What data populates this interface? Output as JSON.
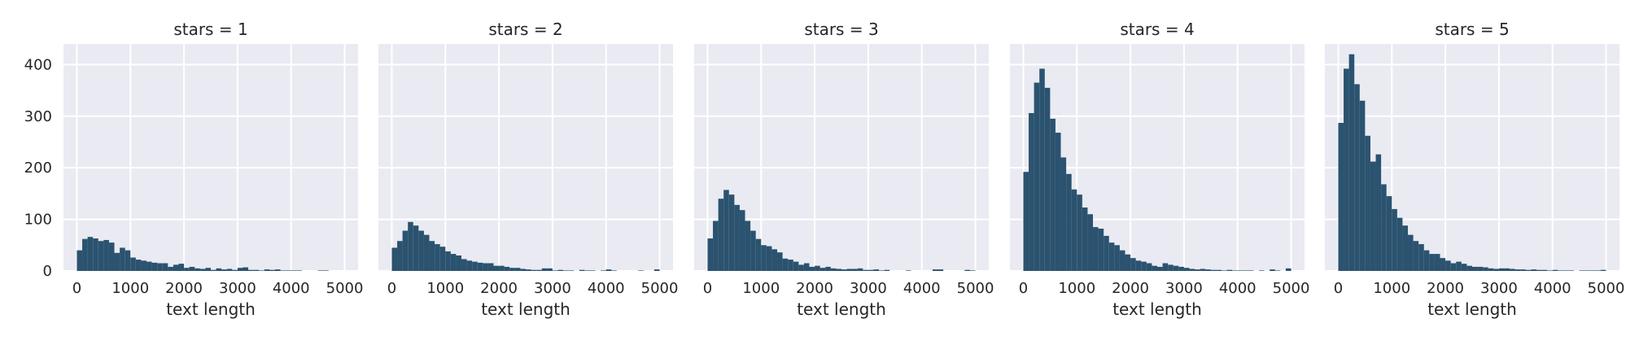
{
  "chart_data": [
    {
      "type": "bar",
      "title": "stars = 1",
      "xlabel": "text length",
      "ylabel": "",
      "bin_width": 100,
      "bin_start": 0,
      "xlim": [
        -250,
        5250
      ],
      "ylim": [
        0,
        440
      ],
      "xticks": [
        0,
        1000,
        2000,
        3000,
        4000,
        5000
      ],
      "yticks": [
        0,
        100,
        200,
        300,
        400
      ],
      "grid": true,
      "values": [
        40,
        62,
        66,
        63,
        58,
        60,
        55,
        35,
        45,
        40,
        26,
        22,
        20,
        18,
        16,
        15,
        15,
        8,
        12,
        14,
        6,
        8,
        5,
        4,
        6,
        2,
        5,
        3,
        4,
        2,
        6,
        7,
        2,
        2,
        1,
        3,
        2,
        3,
        1,
        1,
        1,
        1,
        0,
        0,
        0,
        1,
        1,
        0,
        0,
        0
      ]
    },
    {
      "type": "bar",
      "title": "stars = 2",
      "xlabel": "text length",
      "ylabel": "",
      "bin_width": 100,
      "bin_start": 0,
      "xlim": [
        -250,
        5250
      ],
      "ylim": [
        0,
        440
      ],
      "xticks": [
        0,
        1000,
        2000,
        3000,
        4000,
        5000
      ],
      "yticks": [
        0,
        100,
        200,
        300,
        400
      ],
      "grid": true,
      "values": [
        45,
        58,
        78,
        95,
        88,
        78,
        70,
        58,
        52,
        47,
        38,
        33,
        30,
        23,
        20,
        18,
        16,
        15,
        15,
        10,
        10,
        8,
        6,
        6,
        4,
        3,
        2,
        2,
        5,
        5,
        1,
        2,
        1,
        1,
        0,
        2,
        1,
        1,
        0,
        1,
        3,
        1,
        0,
        0,
        0,
        0,
        1,
        0,
        0,
        3
      ]
    },
    {
      "type": "bar",
      "title": "stars = 3",
      "xlabel": "text length",
      "ylabel": "",
      "bin_width": 100,
      "bin_start": 0,
      "xlim": [
        -250,
        5250
      ],
      "ylim": [
        0,
        440
      ],
      "xticks": [
        0,
        1000,
        2000,
        3000,
        4000,
        5000
      ],
      "yticks": [
        0,
        100,
        200,
        300,
        400
      ],
      "grid": true,
      "values": [
        63,
        97,
        140,
        157,
        148,
        128,
        118,
        97,
        78,
        62,
        50,
        48,
        42,
        36,
        24,
        22,
        18,
        12,
        15,
        8,
        10,
        6,
        8,
        5,
        4,
        3,
        4,
        4,
        5,
        2,
        2,
        3,
        1,
        2,
        0,
        0,
        0,
        1,
        0,
        0,
        0,
        0,
        3,
        3,
        0,
        0,
        0,
        0,
        2,
        1
      ]
    },
    {
      "type": "bar",
      "title": "stars = 4",
      "xlabel": "text length",
      "ylabel": "",
      "bin_width": 100,
      "bin_start": 0,
      "xlim": [
        -250,
        5250
      ],
      "ylim": [
        0,
        440
      ],
      "xticks": [
        0,
        1000,
        2000,
        3000,
        4000,
        5000
      ],
      "yticks": [
        0,
        100,
        200,
        300,
        400
      ],
      "grid": true,
      "values": [
        192,
        306,
        365,
        392,
        355,
        295,
        268,
        220,
        188,
        158,
        148,
        123,
        110,
        85,
        82,
        68,
        55,
        50,
        40,
        32,
        25,
        20,
        18,
        15,
        10,
        8,
        15,
        12,
        10,
        8,
        6,
        4,
        3,
        4,
        3,
        2,
        2,
        1,
        2,
        1,
        1,
        1,
        1,
        0,
        1,
        0,
        3,
        1,
        0,
        5
      ]
    },
    {
      "type": "bar",
      "title": "stars = 5",
      "xlabel": "text length",
      "ylabel": "",
      "bin_width": 100,
      "bin_start": 0,
      "xlim": [
        -250,
        5250
      ],
      "ylim": [
        0,
        440
      ],
      "xticks": [
        0,
        1000,
        2000,
        3000,
        4000,
        5000
      ],
      "yticks": [
        0,
        100,
        200,
        300,
        400
      ],
      "grid": true,
      "values": [
        287,
        392,
        420,
        362,
        330,
        262,
        212,
        226,
        168,
        145,
        120,
        103,
        88,
        70,
        58,
        52,
        40,
        33,
        33,
        25,
        20,
        15,
        18,
        14,
        10,
        8,
        8,
        7,
        5,
        4,
        5,
        5,
        4,
        3,
        3,
        2,
        3,
        2,
        2,
        1,
        2,
        1,
        1,
        1,
        0,
        1,
        1,
        1,
        1,
        2
      ]
    }
  ]
}
